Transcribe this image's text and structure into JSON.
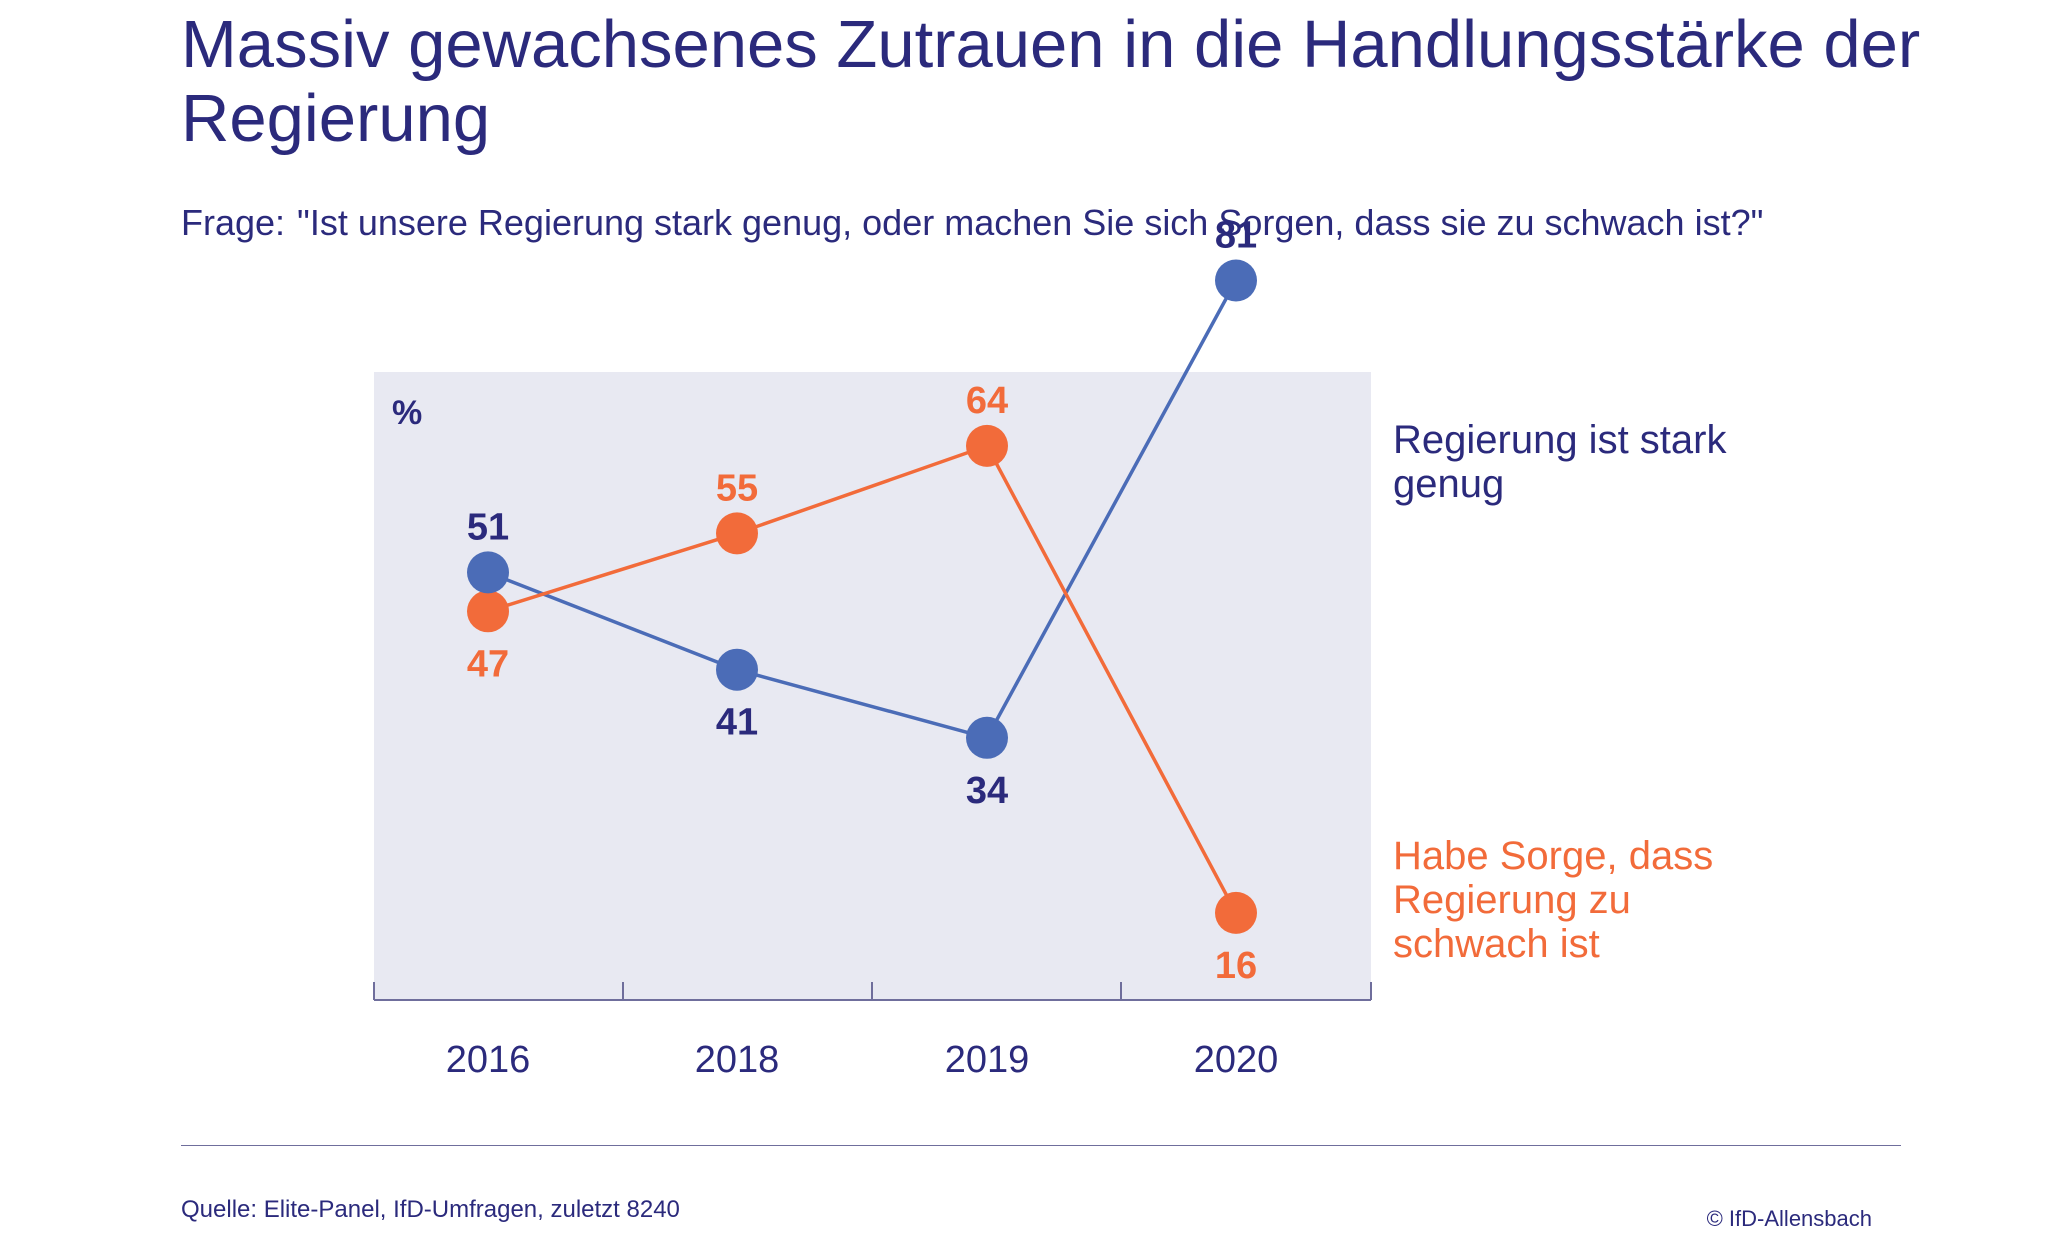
{
  "title": "Massiv gewachsenes Zutrauen in die Handlungsstärke der Regierung",
  "question": {
    "prefix": "Frage:",
    "text": "\"Ist unsere Regierung stark genug, oder machen Sie sich Sorgen, dass sie zu schwach ist?\""
  },
  "chart_data": {
    "type": "line",
    "ylabel": "%",
    "categories": [
      "2016",
      "2018",
      "2019",
      "2020"
    ],
    "ylim": [
      0,
      100
    ],
    "grid": false,
    "legend_placement": "right",
    "series": [
      {
        "name": "Regierung ist stark genug",
        "color": "#4b6cb7",
        "label_color": "#2b2a7c",
        "values": [
          51,
          41,
          34,
          81
        ]
      },
      {
        "name": "Habe Sorge, dass Regierung zu schwach ist",
        "color": "#f26b3a",
        "label_color": "#f26b3a",
        "values": [
          47,
          55,
          64,
          16
        ]
      }
    ]
  },
  "colors": {
    "plot_background": "#e8e9f2",
    "text": "#2b2a7c",
    "axis": "#6f6e9c"
  },
  "footer": {
    "source": "Quelle: Elite-Panel, IfD-Umfragen, zuletzt 8240",
    "copyright": "© IfD-Allensbach"
  }
}
